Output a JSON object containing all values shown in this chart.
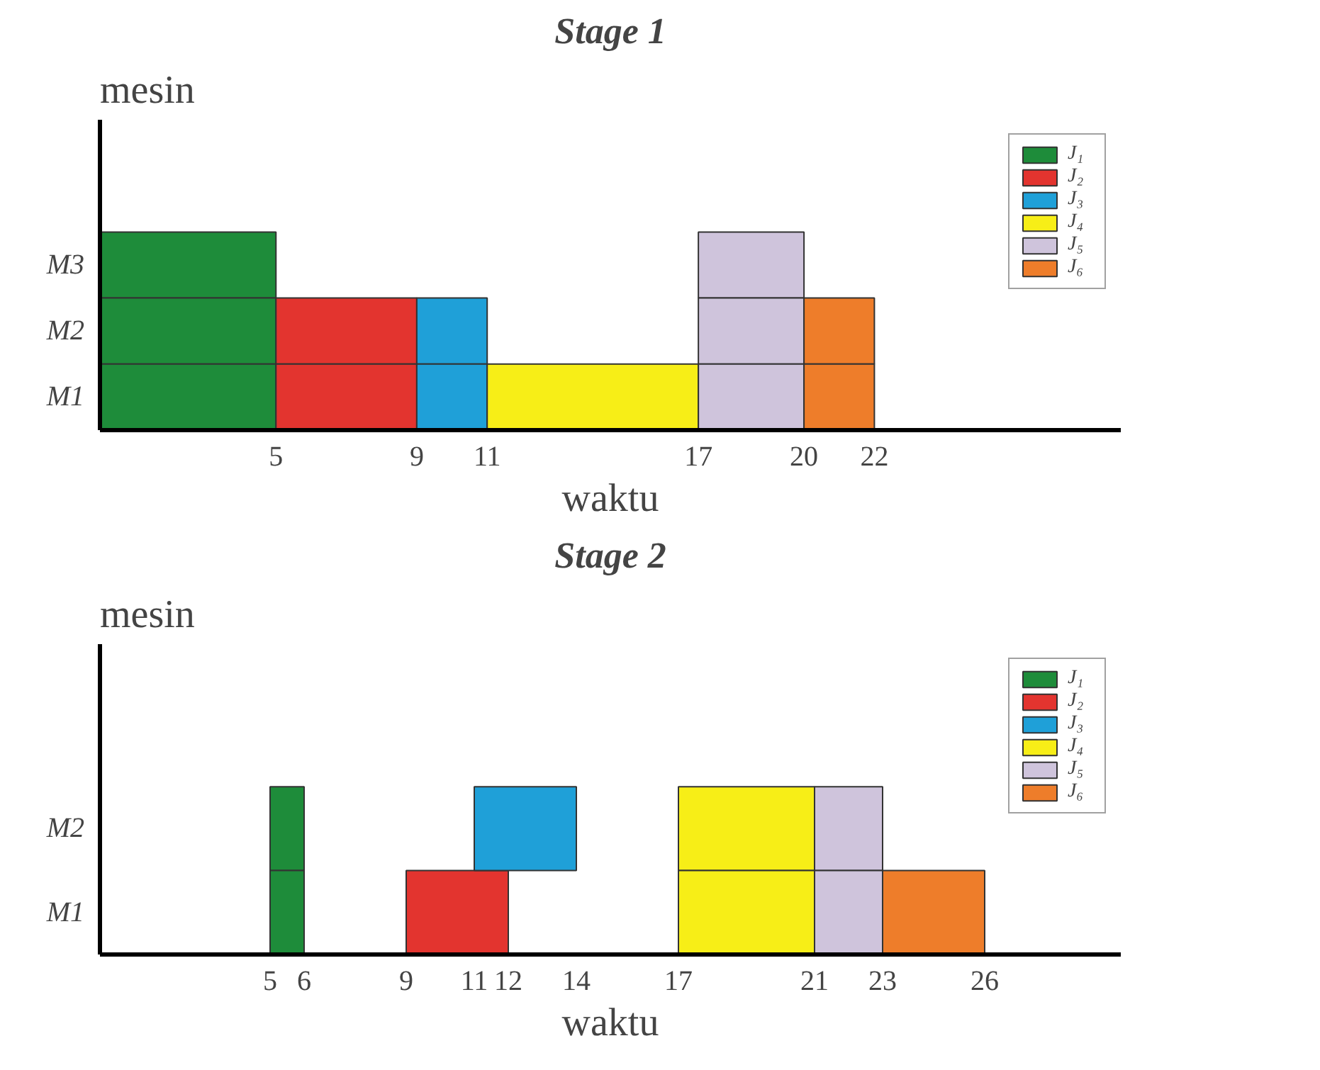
{
  "chart_data": [
    {
      "type": "bar",
      "orientation": "horizontal",
      "title": "Stage 1",
      "xlabel": "waktu",
      "ylabel": "mesin",
      "categories": [
        "M3",
        "M2",
        "M1"
      ],
      "xlim": [
        0,
        29
      ],
      "xticks": [
        5,
        9,
        11,
        17,
        20,
        22
      ],
      "legend": "top right",
      "series": [
        {
          "name": "J₁",
          "color": "#1e8c3a",
          "base": [
            0,
            0,
            0
          ],
          "values": [
            5,
            5,
            5
          ]
        },
        {
          "name": "J₂",
          "color": "#e3342f",
          "base": [
            null,
            5,
            5
          ],
          "values": [
            null,
            4,
            4
          ]
        },
        {
          "name": "J₃",
          "color": "#1fa0d8",
          "base": [
            null,
            9,
            9
          ],
          "values": [
            null,
            2,
            2
          ]
        },
        {
          "name": "J₄",
          "color": "#f7ee17",
          "base": [
            null,
            null,
            11
          ],
          "values": [
            null,
            null,
            6
          ]
        },
        {
          "name": "J₅",
          "color": "#cfc4dc",
          "base": [
            17,
            17,
            17
          ],
          "values": [
            3,
            3,
            3
          ]
        },
        {
          "name": "J₆",
          "color": "#ee7d2a",
          "base": [
            null,
            20,
            20
          ],
          "values": [
            null,
            2,
            2
          ]
        }
      ]
    },
    {
      "type": "bar",
      "orientation": "horizontal",
      "title": "Stage 2",
      "xlabel": "waktu",
      "ylabel": "mesin",
      "categories": [
        "M2",
        "M1"
      ],
      "xlim": [
        0,
        30
      ],
      "xticks": [
        5,
        6,
        9,
        11,
        12,
        14,
        17,
        21,
        23,
        26
      ],
      "legend": "top right",
      "series": [
        {
          "name": "J₁",
          "color": "#1e8c3a",
          "base": [
            5,
            5
          ],
          "values": [
            1,
            1
          ]
        },
        {
          "name": "J₂",
          "color": "#e3342f",
          "base": [
            null,
            9
          ],
          "values": [
            null,
            3
          ]
        },
        {
          "name": "J₃",
          "color": "#1fa0d8",
          "base": [
            11,
            null
          ],
          "values": [
            3,
            null
          ]
        },
        {
          "name": "J₄",
          "color": "#f7ee17",
          "base": [
            17,
            17
          ],
          "values": [
            4,
            4
          ]
        },
        {
          "name": "J₅",
          "color": "#cfc4dc",
          "base": [
            21,
            21
          ],
          "values": [
            2,
            2
          ]
        },
        {
          "name": "J₆",
          "color": "#ee7d2a",
          "base": [
            null,
            23
          ],
          "values": [
            null,
            3
          ]
        }
      ]
    }
  ]
}
